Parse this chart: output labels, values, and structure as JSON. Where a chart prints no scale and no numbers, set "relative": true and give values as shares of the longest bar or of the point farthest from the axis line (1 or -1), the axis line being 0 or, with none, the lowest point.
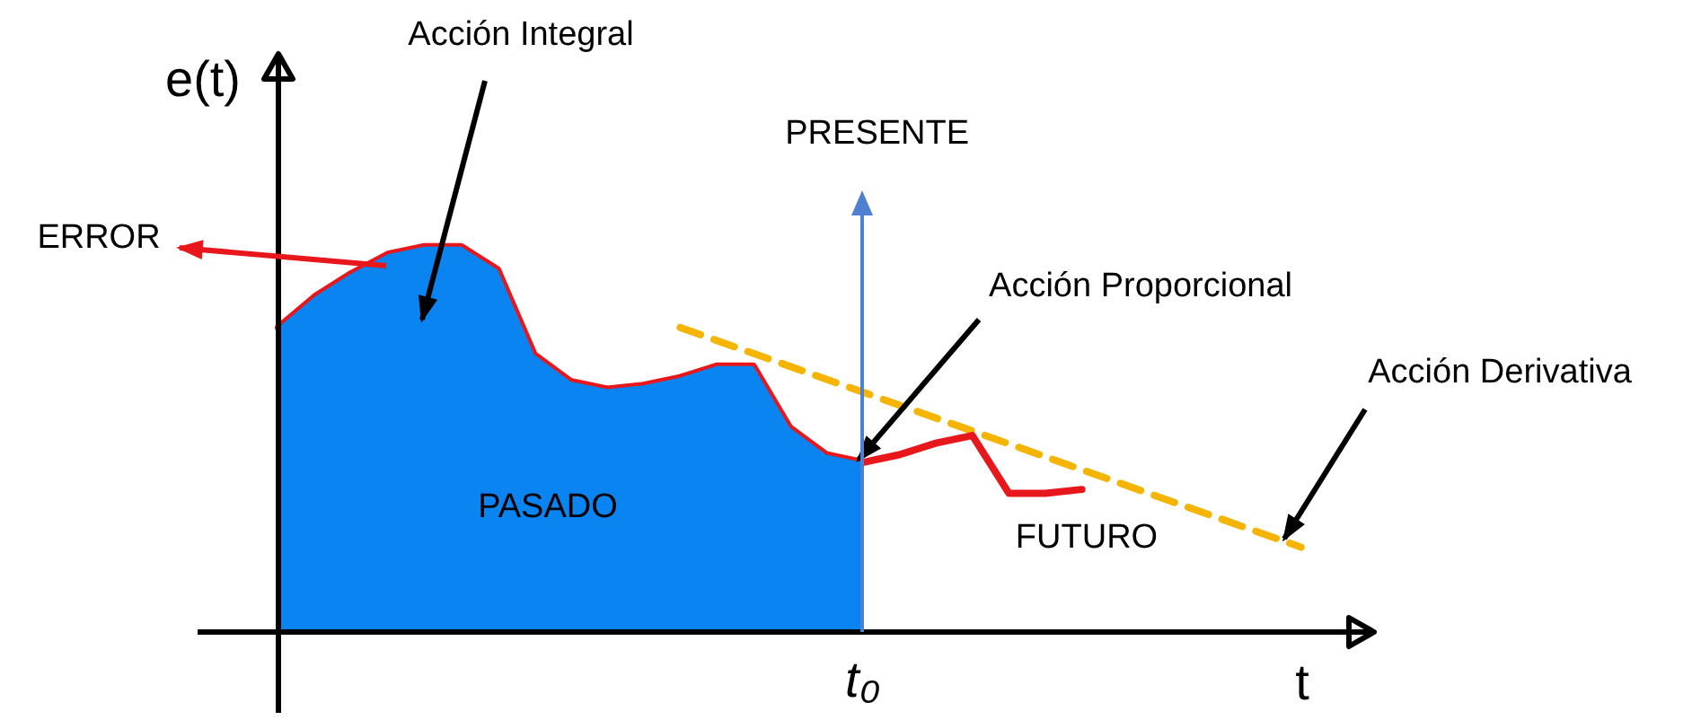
{
  "chart_data": {
    "type": "line",
    "relative": true,
    "xlabel": "t",
    "ylabel": "e(t)",
    "categories": [
      null,
      null,
      null,
      null,
      null,
      null,
      null,
      null,
      null,
      null,
      null,
      null,
      null,
      null,
      null,
      null,
      null,
      null,
      null,
      null,
      null,
      null,
      null,
      null,
      null,
      null,
      null,
      null,
      null,
      null,
      null
    ],
    "series": [
      {
        "type": "area",
        "color": "#0a84f0",
        "values": [
          0.79,
          0.87,
          0.93,
          0.98,
          1,
          1,
          0.94,
          0.72,
          0.65,
          0.63,
          0.64,
          0.66,
          0.69,
          0.69,
          0.53,
          0.46,
          0.44,
          null,
          null,
          null,
          null,
          null,
          null,
          null,
          null,
          null,
          null,
          null,
          null,
          null,
          null
        ]
      },
      {
        "color": "#e8171b",
        "values": [
          0.79,
          0.87,
          0.93,
          0.98,
          1,
          1,
          0.94,
          0.72,
          0.65,
          0.63,
          0.64,
          0.66,
          0.69,
          0.69,
          0.53,
          0.46,
          0.44,
          0.46,
          0.49,
          0.51,
          0.36,
          0.36,
          0.37,
          null,
          null,
          null,
          null,
          null,
          null,
          null,
          null
        ]
      },
      {
        "color": "#f5b400",
        "line_style": "dashed",
        "values": [
          null,
          null,
          null,
          null,
          null,
          null,
          null,
          null,
          null,
          null,
          null,
          0.79,
          null,
          null,
          null,
          null,
          null,
          null,
          null,
          null,
          null,
          null,
          null,
          null,
          null,
          null,
          null,
          null,
          0.22,
          null,
          null
        ]
      }
    ],
    "annotations": [
      "ERROR",
      "Acción Integral",
      "PRESENTE",
      "Acción Proporcional",
      "Acción Derivativa",
      "PASADO",
      "FUTURO",
      "t₀"
    ]
  }
}
